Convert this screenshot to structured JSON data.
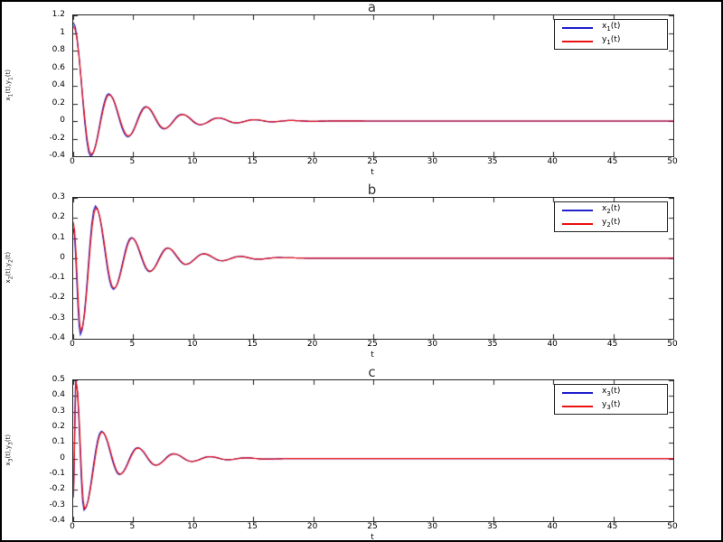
{
  "figure": {
    "background": "#ffffff",
    "border_color": "#000000"
  },
  "chart_data": [
    {
      "type": "line",
      "title": "a",
      "xlabel": "t",
      "ylabel": "x_1(t),y_1(t)",
      "xlim": [
        0,
        50
      ],
      "ylim": [
        -0.4,
        1.2
      ],
      "xticks": [
        0,
        5,
        10,
        15,
        20,
        25,
        30,
        35,
        40,
        45,
        50
      ],
      "yticks": [
        -0.4,
        -0.2,
        0,
        0.2,
        0.4,
        0.6,
        0.8,
        1,
        1.2
      ],
      "legend_position": "top-right",
      "grid": false,
      "series": [
        {
          "name": "x_1(t)",
          "color": "#2222cc",
          "keypoints": [
            [
              0,
              1.12
            ],
            [
              1.45,
              -0.4
            ],
            [
              2.95,
              0.31
            ],
            [
              4.55,
              -0.18
            ],
            [
              6.05,
              0.165
            ],
            [
              7.55,
              -0.09
            ],
            [
              9.05,
              0.078
            ],
            [
              10.55,
              -0.042
            ],
            [
              12.05,
              0.036
            ],
            [
              13.55,
              -0.021
            ],
            [
              15.05,
              0.015
            ],
            [
              16.55,
              -0.009
            ],
            [
              18.05,
              0.006
            ],
            [
              20,
              -0.003
            ],
            [
              22,
              0.002
            ],
            [
              25,
              0
            ],
            [
              50,
              0
            ]
          ]
        },
        {
          "name": "y_1(t)",
          "color": "#ee1111",
          "keypoints": [
            [
              0,
              1.08
            ],
            [
              1.5,
              -0.38
            ],
            [
              3.0,
              0.3
            ],
            [
              4.6,
              -0.17
            ],
            [
              6.1,
              0.16
            ],
            [
              7.6,
              -0.085
            ],
            [
              9.1,
              0.075
            ],
            [
              10.6,
              -0.04
            ],
            [
              12.1,
              0.035
            ],
            [
              13.6,
              -0.02
            ],
            [
              15.1,
              0.015
            ],
            [
              16.6,
              -0.008
            ],
            [
              18.1,
              0.006
            ],
            [
              20,
              -0.003
            ],
            [
              22,
              0.002
            ],
            [
              25,
              0
            ],
            [
              50,
              0
            ]
          ]
        }
      ]
    },
    {
      "type": "line",
      "title": "b",
      "xlabel": "t",
      "ylabel": "x_2(t),y_2(t)",
      "xlim": [
        0,
        50
      ],
      "ylim": [
        -0.4,
        0.3
      ],
      "xticks": [
        0,
        5,
        10,
        15,
        20,
        25,
        30,
        35,
        40,
        45,
        50
      ],
      "yticks": [
        -0.4,
        -0.3,
        -0.2,
        -0.1,
        0,
        0.1,
        0.2,
        0.3
      ],
      "legend_position": "top-right",
      "grid": false,
      "series": [
        {
          "name": "x_2(t)",
          "color": "#2222cc",
          "keypoints": [
            [
              0,
              0.15
            ],
            [
              0.6,
              -0.38
            ],
            [
              1.85,
              0.26
            ],
            [
              3.35,
              -0.155
            ],
            [
              4.85,
              0.103
            ],
            [
              6.35,
              -0.067
            ],
            [
              7.85,
              0.051
            ],
            [
              9.35,
              -0.031
            ],
            [
              10.85,
              0.022
            ],
            [
              12.35,
              -0.013
            ],
            [
              13.85,
              0.009
            ],
            [
              15.35,
              -0.005
            ],
            [
              17,
              0.003
            ],
            [
              20,
              0
            ],
            [
              50,
              0
            ]
          ]
        },
        {
          "name": "y_2(t)",
          "color": "#ee1111",
          "keypoints": [
            [
              0,
              0.18
            ],
            [
              0.65,
              -0.36
            ],
            [
              1.9,
              0.25
            ],
            [
              3.4,
              -0.15
            ],
            [
              4.9,
              0.1
            ],
            [
              6.4,
              -0.065
            ],
            [
              7.9,
              0.05
            ],
            [
              9.4,
              -0.03
            ],
            [
              10.9,
              0.022
            ],
            [
              12.4,
              -0.013
            ],
            [
              13.9,
              0.009
            ],
            [
              15.4,
              -0.005
            ],
            [
              17,
              0.003
            ],
            [
              20,
              0
            ],
            [
              50,
              0
            ]
          ]
        }
      ]
    },
    {
      "type": "line",
      "title": "c",
      "xlabel": "t",
      "ylabel": "x_3(t),y_3(t)",
      "xlim": [
        0,
        50
      ],
      "ylim": [
        -0.4,
        0.5
      ],
      "xticks": [
        0,
        5,
        10,
        15,
        20,
        25,
        30,
        35,
        40,
        45,
        50
      ],
      "yticks": [
        -0.4,
        -0.3,
        -0.2,
        -0.1,
        0,
        0.1,
        0.2,
        0.3,
        0.4,
        0.5
      ],
      "legend_position": "top-right",
      "grid": false,
      "series": [
        {
          "name": "x_3(t)",
          "color": "#2222cc",
          "keypoints": [
            [
              0,
              -0.25
            ],
            [
              0.22,
              0.5
            ],
            [
              0.9,
              -0.33
            ],
            [
              2.35,
              0.175
            ],
            [
              3.85,
              -0.103
            ],
            [
              5.35,
              0.07
            ],
            [
              6.85,
              -0.043
            ],
            [
              8.35,
              0.031
            ],
            [
              9.85,
              -0.018
            ],
            [
              11.35,
              0.012
            ],
            [
              12.85,
              -0.007
            ],
            [
              14.35,
              0.005
            ],
            [
              16,
              -0.003
            ],
            [
              18,
              0
            ],
            [
              50,
              0
            ]
          ]
        },
        {
          "name": "y_3(t)",
          "color": "#ee1111",
          "keypoints": [
            [
              0,
              -0.22
            ],
            [
              0.25,
              0.48
            ],
            [
              0.95,
              -0.32
            ],
            [
              2.4,
              0.17
            ],
            [
              3.9,
              -0.1
            ],
            [
              5.4,
              0.068
            ],
            [
              6.9,
              -0.042
            ],
            [
              8.4,
              0.03
            ],
            [
              9.9,
              -0.018
            ],
            [
              11.4,
              0.012
            ],
            [
              12.9,
              -0.007
            ],
            [
              14.4,
              0.005
            ],
            [
              16,
              -0.003
            ],
            [
              18,
              0
            ],
            [
              50,
              0
            ]
          ]
        }
      ]
    }
  ]
}
